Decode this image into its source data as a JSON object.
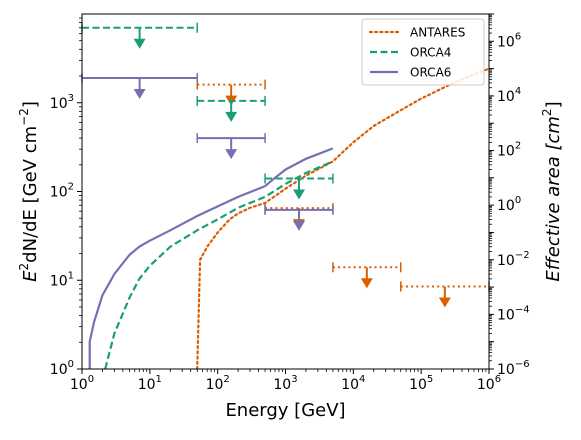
{
  "chart_data": {
    "type": "line",
    "xlabel": "Energy [GeV]",
    "ylabel_left_parts": [
      "E",
      "2",
      "dN/dE [GeV cm",
      "−2",
      "]"
    ],
    "ylabel_right_parts": [
      "Effective area [cm",
      "2",
      "]"
    ],
    "x_scale": "log",
    "y_scale": "log",
    "xlim": [
      1,
      1000000
    ],
    "ylim_left": [
      1,
      10000
    ],
    "ylim_right": [
      1e-06,
      10000000
    ],
    "x_ticks": [
      {
        "value": 1,
        "base": "10",
        "exp": "0"
      },
      {
        "value": 10,
        "base": "10",
        "exp": "1"
      },
      {
        "value": 100,
        "base": "10",
        "exp": "2"
      },
      {
        "value": 1000,
        "base": "10",
        "exp": "3"
      },
      {
        "value": 10000,
        "base": "10",
        "exp": "4"
      },
      {
        "value": 100000,
        "base": "10",
        "exp": "5"
      },
      {
        "value": 1000000,
        "base": "10",
        "exp": "6"
      }
    ],
    "y_left_ticks": [
      {
        "value": 1,
        "base": "10",
        "exp": "0"
      },
      {
        "value": 10,
        "base": "10",
        "exp": "1"
      },
      {
        "value": 100,
        "base": "10",
        "exp": "2"
      },
      {
        "value": 1000,
        "base": "10",
        "exp": "3"
      }
    ],
    "y_right_ticks": [
      {
        "value": 1e-06,
        "base": "10",
        "exp": "−6"
      },
      {
        "value": 0.0001,
        "base": "10",
        "exp": "−4"
      },
      {
        "value": 0.01,
        "base": "10",
        "exp": "−2"
      },
      {
        "value": 1,
        "base": "10",
        "exp": "0"
      },
      {
        "value": 100,
        "base": "10",
        "exp": "2"
      },
      {
        "value": 10000,
        "base": "10",
        "exp": "4"
      },
      {
        "value": 1000000,
        "base": "10",
        "exp": "6"
      }
    ],
    "legend": {
      "placement": "top-right"
    },
    "series": [
      {
        "name": "ANTARES",
        "color": "#d95f02",
        "dash": "dotted",
        "effective_area": [
          [
            50,
            1e-06
          ],
          [
            55,
            0.01
          ],
          [
            70,
            0.03
          ],
          [
            100,
            0.1
          ],
          [
            150,
            0.3
          ],
          [
            200,
            0.5
          ],
          [
            300,
            0.8
          ],
          [
            500,
            1.2
          ],
          [
            1000,
            4
          ],
          [
            2000,
            12
          ],
          [
            5000,
            40
          ],
          [
            10000,
            200
          ],
          [
            20000,
            800
          ],
          [
            50000,
            3000
          ],
          [
            100000,
            8000
          ],
          [
            300000,
            30000
          ],
          [
            1000000,
            100000
          ]
        ],
        "upper_limits": [
          {
            "e_min": 50,
            "e_max": 500,
            "flux": 1600
          },
          {
            "e_min": 500,
            "e_max": 5000,
            "flux": 65
          },
          {
            "e_min": 5000,
            "e_max": 50000,
            "flux": 14
          },
          {
            "e_min": 50000,
            "e_max": 1000000,
            "flux": 8.5
          }
        ]
      },
      {
        "name": "ORCA4",
        "color": "#1b9e77",
        "dash": "dashed",
        "effective_area": [
          [
            2.2,
            1e-06
          ],
          [
            3,
            2e-05
          ],
          [
            5,
            0.0004
          ],
          [
            7,
            0.002
          ],
          [
            10,
            0.006
          ],
          [
            20,
            0.03
          ],
          [
            50,
            0.12
          ],
          [
            100,
            0.3
          ],
          [
            200,
            0.8
          ],
          [
            500,
            2
          ],
          [
            1000,
            6
          ],
          [
            2000,
            15
          ],
          [
            5000,
            40
          ]
        ],
        "upper_limits": [
          {
            "e_min": 1,
            "e_max": 50,
            "flux": 7000
          },
          {
            "e_min": 50,
            "e_max": 500,
            "flux": 1050
          },
          {
            "e_min": 500,
            "e_max": 5000,
            "flux": 140
          }
        ]
      },
      {
        "name": "ORCA6",
        "color": "#7570b3",
        "dash": "solid",
        "effective_area": [
          [
            1.3,
            1e-06
          ],
          [
            1.3,
            1e-05
          ],
          [
            1.5,
            5e-05
          ],
          [
            2,
            0.0005
          ],
          [
            3,
            0.003
          ],
          [
            5,
            0.015
          ],
          [
            7,
            0.03
          ],
          [
            10,
            0.05
          ],
          [
            20,
            0.12
          ],
          [
            50,
            0.4
          ],
          [
            100,
            0.9
          ],
          [
            200,
            2
          ],
          [
            500,
            5
          ],
          [
            700,
            10
          ],
          [
            1000,
            20
          ],
          [
            2000,
            50
          ],
          [
            5000,
            120
          ]
        ],
        "upper_limits": [
          {
            "e_min": 1,
            "e_max": 50,
            "flux": 1900
          },
          {
            "e_min": 50,
            "e_max": 500,
            "flux": 400
          },
          {
            "e_min": 500,
            "e_max": 5000,
            "flux": 62
          }
        ]
      }
    ]
  }
}
